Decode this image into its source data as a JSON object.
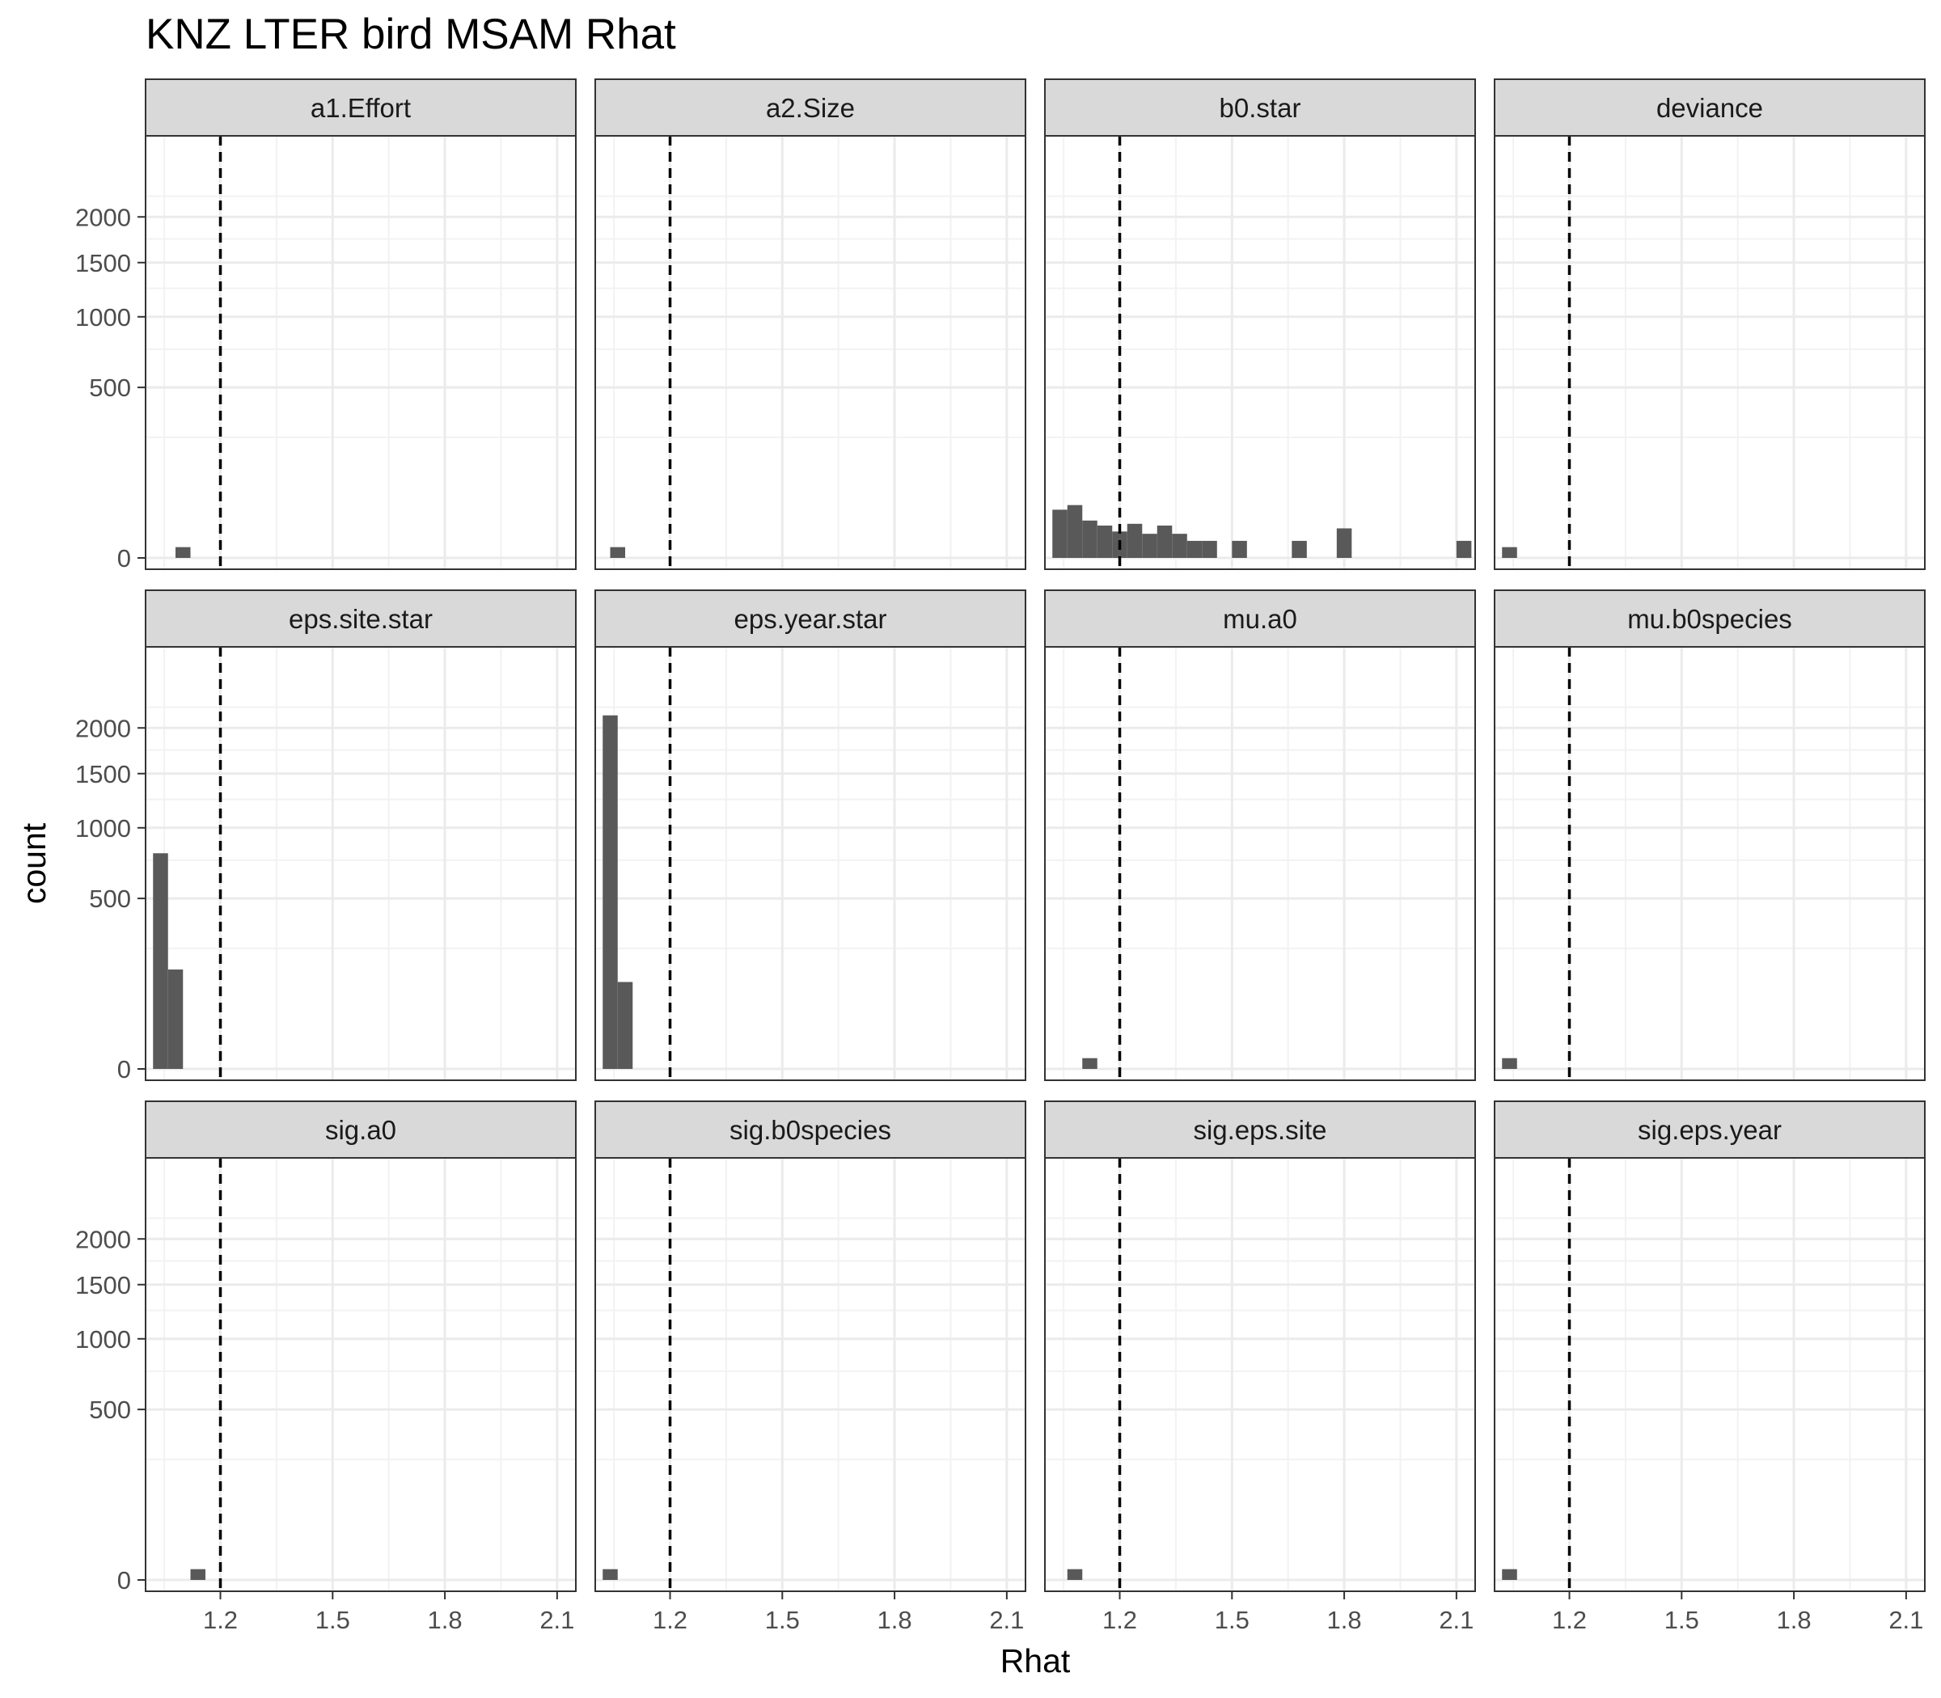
{
  "chart_data": {
    "type": "bar",
    "title": "KNZ LTER bird MSAM Rhat",
    "xlabel": "Rhat",
    "ylabel": "count",
    "x_ticks": [
      1.2,
      1.5,
      1.8,
      2.1
    ],
    "x_tick_labels": [
      "1.2",
      "1.5",
      "1.8",
      "2.1"
    ],
    "xlim": [
      1.0,
      2.15
    ],
    "y_scale": "sqrt",
    "y_ticks": [
      0,
      500,
      1000,
      1500,
      2000
    ],
    "y_tick_labels": [
      "0",
      "500",
      "1000",
      "1500",
      "2000"
    ],
    "ylim": [
      0,
      2400
    ],
    "bin_width": 0.04,
    "threshold_line": {
      "x": 1.2,
      "style": "dashed"
    },
    "grid": true,
    "layout": {
      "rows": 3,
      "cols": 4
    },
    "bar_color": "#595959",
    "panels": [
      {
        "label": "a1.Effort",
        "bins": [
          [
            1.1,
            2
          ]
        ]
      },
      {
        "label": "a2.Size",
        "bins": [
          [
            1.06,
            2
          ]
        ]
      },
      {
        "label": "b0.star",
        "bins": [
          [
            1.04,
            40
          ],
          [
            1.08,
            48
          ],
          [
            1.12,
            24
          ],
          [
            1.16,
            18
          ],
          [
            1.2,
            12
          ],
          [
            1.24,
            20
          ],
          [
            1.28,
            10
          ],
          [
            1.32,
            18
          ],
          [
            1.36,
            10
          ],
          [
            1.4,
            5
          ],
          [
            1.44,
            5
          ],
          [
            1.52,
            5
          ],
          [
            1.68,
            5
          ],
          [
            1.8,
            15
          ],
          [
            2.12,
            5
          ]
        ]
      },
      {
        "label": "deviance",
        "bins": [
          [
            1.04,
            2
          ]
        ]
      },
      {
        "label": "eps.site.star",
        "bins": [
          [
            1.04,
            800
          ],
          [
            1.08,
            170
          ]
        ]
      },
      {
        "label": "eps.year.star",
        "bins": [
          [
            1.04,
            2150
          ],
          [
            1.08,
            130
          ]
        ]
      },
      {
        "label": "mu.a0",
        "bins": [
          [
            1.12,
            2
          ]
        ]
      },
      {
        "label": "mu.b0species",
        "bins": [
          [
            1.04,
            2
          ]
        ]
      },
      {
        "label": "sig.a0",
        "bins": [
          [
            1.14,
            2
          ]
        ]
      },
      {
        "label": "sig.b0species",
        "bins": [
          [
            1.04,
            2
          ]
        ]
      },
      {
        "label": "sig.eps.site",
        "bins": [
          [
            1.08,
            2
          ]
        ]
      },
      {
        "label": "sig.eps.year",
        "bins": [
          [
            1.04,
            2
          ]
        ]
      }
    ]
  }
}
